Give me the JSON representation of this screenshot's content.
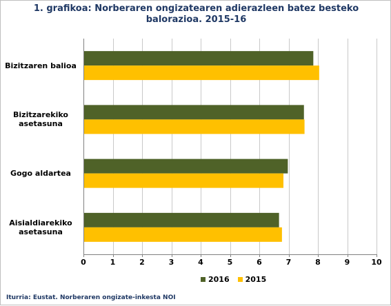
{
  "title_line1": "1. grafikoa: Norberaren ongizatearen adierazleen batez besteko",
  "title_line2": "balorazioa. 2015-16",
  "source": "Iturria: Eustat. Norberaren ongizate-inkesta NOI",
  "chart_data": {
    "type": "bar",
    "orientation": "horizontal",
    "categories": [
      [
        "Bizitzaren balioa"
      ],
      [
        "Bizitzarekiko",
        "asetasuna"
      ],
      [
        "Gogo aldartea"
      ],
      [
        "Aisialdiarekiko",
        "asetasuna"
      ]
    ],
    "series": [
      {
        "name": "2016",
        "color": "#4f6228",
        "values": [
          7.82,
          7.5,
          6.95,
          6.65
        ]
      },
      {
        "name": "2015",
        "color": "#ffc000",
        "values": [
          8.02,
          7.52,
          6.8,
          6.75
        ]
      }
    ],
    "xlim": [
      0,
      10
    ],
    "xticks": [
      "0",
      "1",
      "2",
      "3",
      "4",
      "5",
      "6",
      "7",
      "8",
      "9",
      "10"
    ],
    "grid": "vertical",
    "legend_position": "bottom"
  }
}
